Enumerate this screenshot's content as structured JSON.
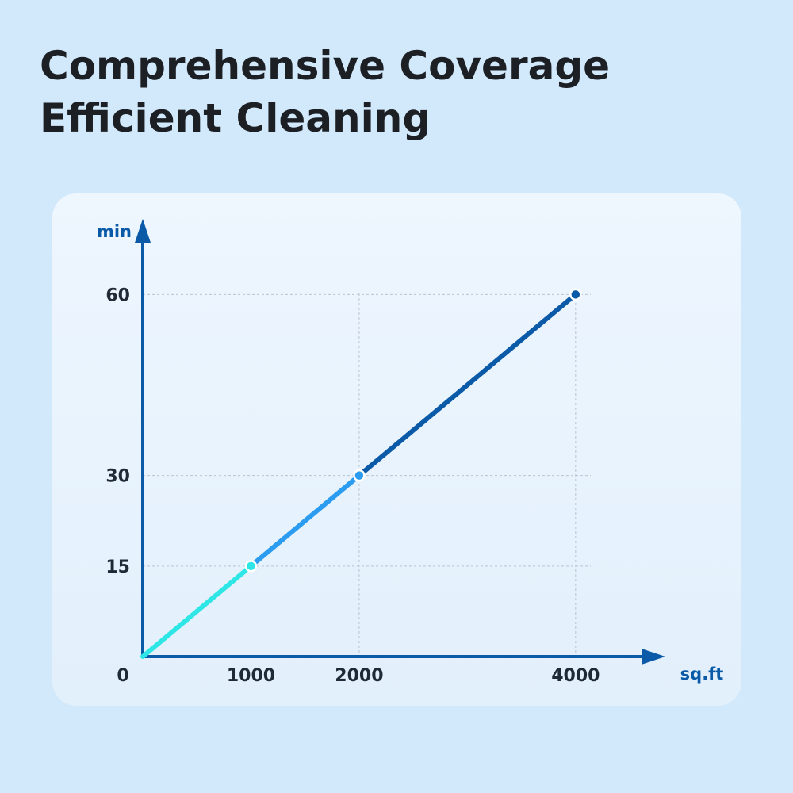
{
  "chart_data": {
    "type": "line",
    "title": [
      "Comprehensive Coverage",
      "Efficient Cleaning"
    ],
    "x_label": "sq.ft",
    "y_label": "min",
    "x": [
      0,
      1000,
      2000,
      4000
    ],
    "values": [
      0,
      15,
      30,
      60
    ],
    "segment_colors": [
      "#2ee6e6",
      "#2b9cf0",
      "#0a5aa8"
    ],
    "axis_color": "#0a5aa8",
    "xlim": [
      0,
      4800
    ],
    "ylim": [
      0,
      72
    ],
    "xticks": [
      0,
      1000,
      2000,
      4000
    ],
    "yticks": [
      15,
      30,
      60
    ],
    "guide_lines": true
  }
}
